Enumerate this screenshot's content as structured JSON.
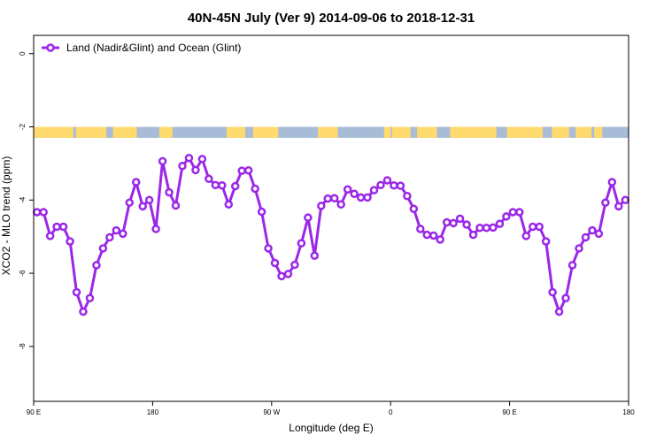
{
  "chart_data": {
    "type": "line",
    "title": "40N-45N July (Ver 9)   2014-09-06 to 2018-12-31",
    "xlabel": "Longitude (deg E)",
    "ylabel": "XCO2 - MLO trend (ppm)",
    "x_ticks": [
      {
        "value": 90,
        "label": "90 E"
      },
      {
        "value": 180,
        "label": "180"
      },
      {
        "value": 270,
        "label": "90 W"
      },
      {
        "value": 360,
        "label": "0"
      },
      {
        "value": 450,
        "label": "90 E"
      },
      {
        "value": 540,
        "label": "180"
      }
    ],
    "y_ticks": [
      {
        "value": 0,
        "label": "0"
      },
      {
        "value": -2,
        "label": "-2"
      },
      {
        "value": -4,
        "label": "-4"
      },
      {
        "value": -6,
        "label": "-6"
      },
      {
        "value": -8,
        "label": "-8"
      }
    ],
    "xlim": [
      90,
      540
    ],
    "ylim": [
      -9.5,
      0.5
    ],
    "grid": false,
    "legend_position": "top-left",
    "land_ocean_strip": {
      "y_range": [
        -2.3,
        -2.0
      ],
      "land_color": "#FFDA6E",
      "ocean_color": "#A8BCD8",
      "land_segments": [
        [
          90,
          120
        ],
        [
          122,
          145
        ],
        [
          150,
          168
        ],
        [
          185,
          195
        ],
        [
          236,
          250
        ],
        [
          256,
          275
        ],
        [
          305,
          320
        ],
        [
          355,
          360
        ],
        [
          361,
          375
        ],
        [
          380,
          395
        ],
        [
          405,
          440
        ],
        [
          448,
          475
        ],
        [
          482,
          495
        ],
        [
          500,
          512
        ],
        [
          514,
          520
        ]
      ]
    },
    "series": [
      {
        "name": "Land (Nadir&Glint) and Ocean (Glint)",
        "color": "#9B27E8",
        "x": [
          92.5,
          97.5,
          102.5,
          107.5,
          112.5,
          117.5,
          122.5,
          127.5,
          132.5,
          137.5,
          142.5,
          147.5,
          152.5,
          157.5,
          162.5,
          167.5,
          172.5,
          177.5,
          182.5,
          187.5,
          192.5,
          197.5,
          202.5,
          207.5,
          212.5,
          217.5,
          222.5,
          227.5,
          232.5,
          237.5,
          242.5,
          247.5,
          252.5,
          257.5,
          262.5,
          267.5,
          272.5,
          277.5,
          282.5,
          287.5,
          292.5,
          297.5,
          302.5,
          307.5,
          312.5,
          317.5,
          322.5,
          327.5,
          332.5,
          337.5,
          342.5,
          347.5,
          352.5,
          357.5,
          362.5,
          367.5,
          372.5,
          377.5,
          382.5,
          387.5,
          392.5,
          397.5,
          402.5,
          407.5,
          412.5,
          417.5,
          422.5,
          427.5,
          432.5,
          437.5,
          442.5,
          447.5,
          452.5,
          457.5,
          462.5,
          467.5,
          472.5,
          477.5,
          482.5,
          487.5,
          492.5,
          497.5,
          502.5,
          507.5,
          512.5,
          517.5,
          522.5,
          527.5,
          532.5,
          537.5
        ],
        "y": [
          -4.33,
          -4.33,
          -4.98,
          -4.73,
          -4.73,
          -5.13,
          -6.52,
          -7.05,
          -6.68,
          -5.78,
          -5.32,
          -5.02,
          -4.83,
          -4.92,
          -4.07,
          -3.51,
          -4.17,
          -4.0,
          -4.79,
          -2.94,
          -3.79,
          -4.15,
          -3.07,
          -2.85,
          -3.18,
          -2.88,
          -3.42,
          -3.59,
          -3.6,
          -4.12,
          -3.62,
          -3.2,
          -3.19,
          -3.69,
          -4.32,
          -5.32,
          -5.72,
          -6.08,
          -6.02,
          -5.77,
          -5.18,
          -4.48,
          -5.52,
          -4.16,
          -3.96,
          -3.95,
          -4.12,
          -3.71,
          -3.83,
          -3.93,
          -3.93,
          -3.73,
          -3.59,
          -3.46,
          -3.6,
          -3.61,
          -3.89,
          -4.24,
          -4.79,
          -4.95,
          -4.97,
          -5.08,
          -4.61,
          -4.63,
          -4.51,
          -4.67,
          -4.95,
          -4.76,
          -4.76,
          -4.75,
          -4.65,
          -4.45,
          -4.33,
          -4.33,
          -4.98,
          -4.73,
          -4.73,
          -5.13,
          -6.52,
          -7.05,
          -6.68,
          -5.78,
          -5.32,
          -5.02,
          -4.83,
          -4.92,
          -4.07,
          -3.51,
          -4.17,
          -4.0
        ]
      }
    ]
  }
}
